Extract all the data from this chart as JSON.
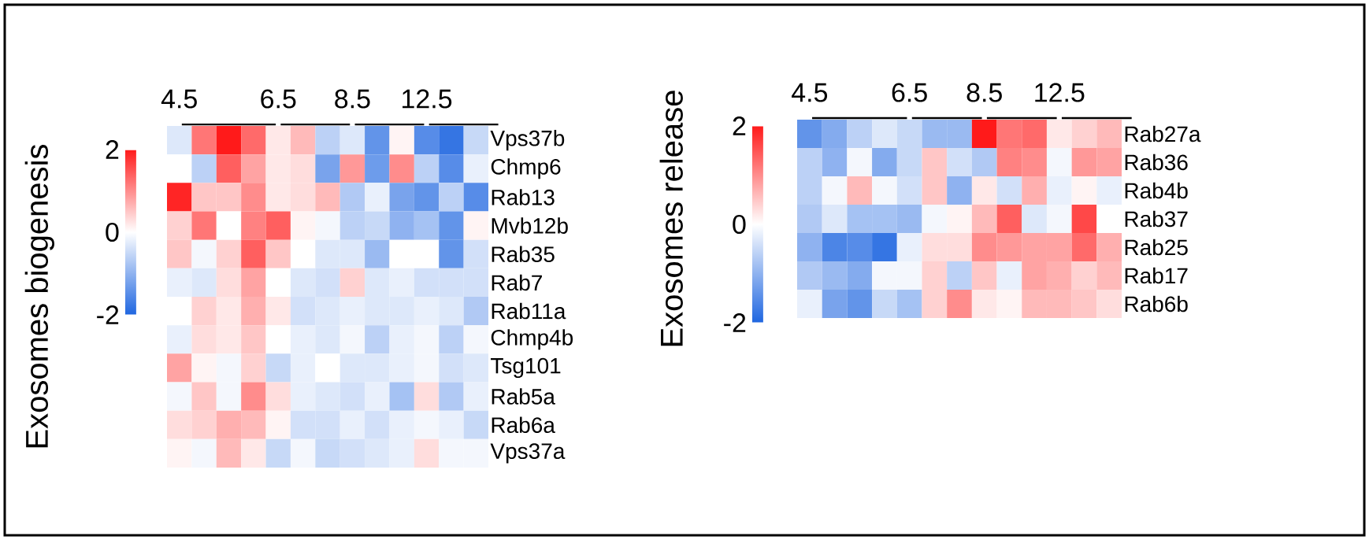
{
  "chart_data": [
    {
      "type": "heatmap",
      "ylabel": "Exosomes  biogenesis",
      "categories": [
        "4.5",
        null,
        null,
        null,
        "6.5",
        null,
        null,
        "8.5",
        null,
        null,
        "12.5",
        null,
        null
      ],
      "y_categories": [
        "Vps37b",
        "Chmp6",
        "Rab13",
        "Mvb12b",
        "Rab35",
        "Rab7",
        "Rab11a",
        "Chmp4b",
        "Tsg101",
        "Rab5a",
        "Rab6a",
        "Vps37a"
      ],
      "cells": [
        [
          -0.3,
          1.2,
          2.0,
          1.3,
          0.2,
          0.6,
          -0.6,
          -0.3,
          -1.4,
          0.1,
          -1.5,
          -1.8,
          -0.5
        ],
        [
          0.0,
          -0.6,
          1.4,
          0.8,
          0.2,
          0.3,
          -1.2,
          0.9,
          -1.3,
          1.0,
          -0.6,
          -1.5,
          -0.2
        ],
        [
          1.9,
          0.5,
          0.5,
          1.0,
          0.2,
          0.3,
          0.6,
          -0.7,
          -0.2,
          -1.2,
          -1.4,
          -0.6,
          -1.5
        ],
        [
          0.4,
          1.2,
          0.0,
          1.1,
          1.4,
          0.1,
          -0.1,
          -0.6,
          -0.5,
          -1.0,
          -0.8,
          -1.4,
          0.1
        ],
        [
          0.5,
          -0.1,
          0.4,
          1.4,
          0.5,
          0.0,
          -0.3,
          -0.3,
          -0.9,
          0.0,
          0.0,
          -1.4,
          -0.4
        ],
        [
          -0.2,
          -0.3,
          0.3,
          0.8,
          0.0,
          -0.3,
          -0.4,
          0.4,
          -0.3,
          -0.2,
          -0.4,
          -0.4,
          -0.4
        ],
        [
          0.0,
          0.4,
          0.2,
          0.7,
          0.2,
          -0.4,
          -0.3,
          -0.2,
          -0.3,
          -0.3,
          -0.2,
          -0.3,
          -0.7
        ],
        [
          -0.2,
          0.3,
          0.2,
          0.5,
          0.0,
          -0.2,
          -0.3,
          -0.1,
          -0.6,
          -0.2,
          -0.1,
          -0.6,
          -0.1
        ],
        [
          0.8,
          0.1,
          -0.1,
          0.4,
          -0.5,
          -0.2,
          0.0,
          -0.3,
          -0.3,
          -0.2,
          -0.1,
          -0.4,
          -0.3
        ],
        [
          -0.1,
          0.5,
          -0.1,
          1.0,
          0.3,
          -0.2,
          -0.3,
          -0.4,
          -0.2,
          -0.8,
          0.3,
          -0.7,
          -0.2
        ],
        [
          0.3,
          0.4,
          0.7,
          0.6,
          0.1,
          -0.4,
          -0.4,
          -0.2,
          -0.4,
          -0.2,
          -0.1,
          -0.2,
          -0.5
        ],
        [
          0.1,
          -0.1,
          0.6,
          0.2,
          -0.5,
          -0.1,
          -0.5,
          -0.4,
          -0.3,
          -0.2,
          0.3,
          -0.1,
          -0.1
        ]
      ],
      "clim": [
        -2,
        2
      ],
      "cticks": [
        -2,
        0,
        2
      ]
    },
    {
      "type": "heatmap",
      "ylabel": "Exosomes release",
      "categories": [
        "4.5",
        null,
        null,
        null,
        "6.5",
        null,
        null,
        "8.5",
        null,
        null,
        "12.5",
        null,
        null
      ],
      "y_categories": [
        "Rab27a",
        "Rab36",
        "Rab4b",
        "Rab37",
        "Rab25",
        "Rab17",
        "Rab6b"
      ],
      "cells": [
        [
          -1.4,
          -1.1,
          -0.6,
          -0.3,
          -0.5,
          -0.9,
          -0.9,
          2.0,
          1.2,
          1.3,
          0.2,
          0.4,
          0.6
        ],
        [
          -0.6,
          -1.0,
          -0.1,
          -1.1,
          -0.5,
          0.5,
          -0.4,
          -0.7,
          1.1,
          1.0,
          -0.1,
          0.9,
          0.8
        ],
        [
          -0.6,
          -0.1,
          0.6,
          -0.1,
          -0.4,
          0.5,
          -1.0,
          0.2,
          -0.4,
          0.7,
          -0.2,
          0.1,
          -0.2
        ],
        [
          -0.7,
          -0.3,
          -0.8,
          -0.8,
          -0.9,
          -0.1,
          0.1,
          0.6,
          1.4,
          -0.3,
          -0.1,
          1.6,
          0.0
        ],
        [
          -1.0,
          -1.6,
          -1.5,
          -1.8,
          -0.2,
          0.3,
          0.3,
          1.0,
          0.9,
          0.8,
          0.8,
          1.3,
          0.7
        ],
        [
          -0.7,
          -0.9,
          -1.1,
          -0.1,
          -0.1,
          0.4,
          -0.6,
          0.5,
          -0.2,
          0.8,
          0.7,
          0.4,
          0.6
        ],
        [
          -0.2,
          -1.2,
          -1.4,
          -0.5,
          -0.8,
          0.4,
          1.0,
          0.2,
          0.1,
          0.6,
          0.6,
          0.5,
          0.3
        ]
      ],
      "clim": [
        -2,
        2
      ],
      "cticks": [
        -2,
        0,
        2
      ]
    }
  ]
}
